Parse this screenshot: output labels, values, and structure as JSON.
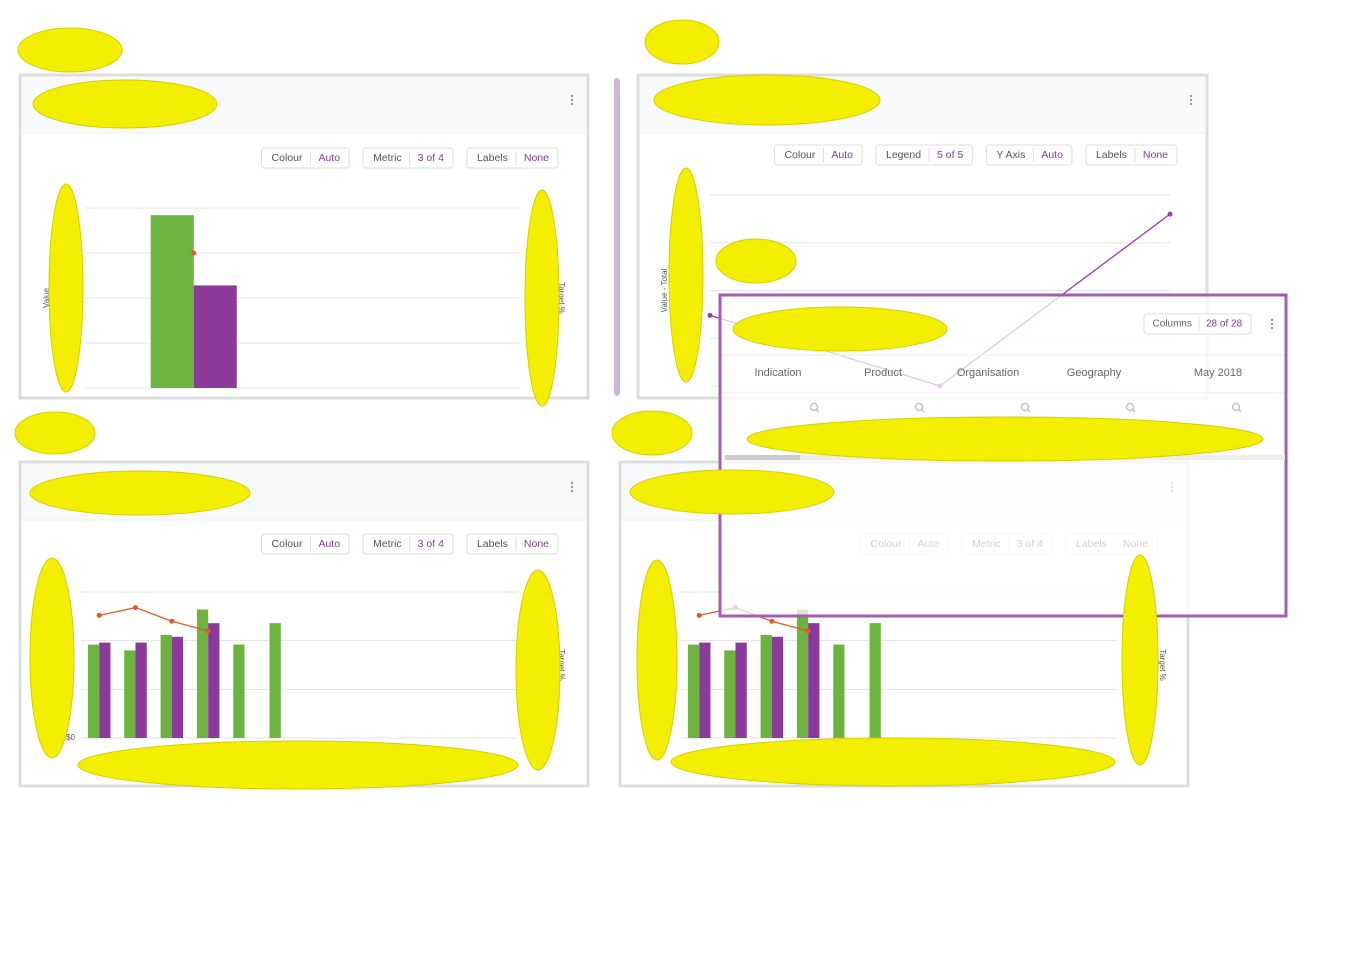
{
  "panels": [
    {
      "controls": [
        {
          "label": "Colour",
          "value": "Auto"
        },
        {
          "label": "Metric",
          "value": "3 of 4"
        },
        {
          "label": "Labels",
          "value": "None"
        }
      ],
      "chart": {
        "type": "bar",
        "ylabel": "Value",
        "y2label": "Target %",
        "categories": [
          null,
          null
        ],
        "ylim": [
          0,
          100
        ],
        "yticks": [
          0,
          25,
          50,
          75,
          100
        ],
        "y2lim": [
          0,
          100
        ],
        "series": [
          {
            "color": "#6db33f",
            "values": [
              96,
              null
            ]
          },
          {
            "color": "#8b3a99",
            "values": [
              57,
              null
            ]
          },
          {
            "color": "#e8572a",
            "axis": "y2",
            "values": [
              75,
              null
            ]
          }
        ]
      }
    },
    {
      "controls": [
        {
          "label": "Colour",
          "value": "Auto"
        },
        {
          "label": "Legend",
          "value": "5 of 5"
        },
        {
          "label": "Y Axis",
          "value": "Auto"
        },
        {
          "label": "Labels",
          "value": "None"
        }
      ],
      "chart": {
        "type": "line",
        "ylabel": "Value - Total",
        "categories": [
          null,
          null,
          null
        ],
        "ylim": [
          0,
          100
        ],
        "yticks": [
          0,
          25,
          50,
          75,
          100
        ],
        "series": [
          {
            "color": "#9b3da8",
            "values": [
              37,
              0,
              90
            ]
          }
        ]
      }
    },
    {
      "controls": [
        {
          "label": "Colour",
          "value": "Auto"
        },
        {
          "label": "Metric",
          "value": "3 of 4"
        },
        {
          "label": "Labels",
          "value": "None"
        }
      ],
      "chart": {
        "type": "bar",
        "y2label": "Target %",
        "categories": [
          null,
          null,
          null,
          null,
          null,
          null,
          null,
          null,
          null,
          null,
          null,
          null
        ],
        "ylim": [
          0,
          75
        ],
        "yticks": [
          {
            "value": 0,
            "label": "$0"
          },
          25,
          50,
          75
        ],
        "y2lim": [
          0,
          75
        ],
        "series": [
          {
            "color": "#6db33f",
            "values": [
              48,
              45,
              53,
              66,
              48,
              59,
              null,
              null,
              null,
              null,
              null,
              null
            ]
          },
          {
            "color": "#8b3a99",
            "values": [
              49,
              49,
              52,
              59,
              null,
              null,
              null,
              null,
              null,
              null,
              null,
              null
            ]
          },
          {
            "color": "#e8572a",
            "axis": "y2",
            "values": [
              63,
              67,
              60,
              55,
              null,
              null,
              null,
              null,
              null,
              null,
              null,
              null
            ]
          }
        ]
      }
    },
    {
      "controls": [
        {
          "label": "Colour",
          "value": "Auto"
        },
        {
          "label": "Metric",
          "value": "3 of 4"
        },
        {
          "label": "Labels",
          "value": "None"
        }
      ],
      "chart": {
        "type": "bar",
        "y2label": "Target %",
        "categories": [
          null,
          null,
          null,
          null,
          null,
          null,
          null,
          null,
          null,
          null,
          null,
          null
        ],
        "ylim": [
          0,
          75
        ],
        "yticks": [
          0,
          25,
          50,
          75
        ],
        "y2lim": [
          0,
          75
        ],
        "series": [
          {
            "color": "#6db33f",
            "values": [
              48,
              45,
              53,
              66,
              48,
              59,
              null,
              null,
              null,
              null,
              null,
              null
            ]
          },
          {
            "color": "#8b3a99",
            "values": [
              49,
              49,
              52,
              59,
              null,
              null,
              null,
              null,
              null,
              null,
              null,
              null
            ]
          },
          {
            "color": "#e8572a",
            "axis": "y2",
            "values": [
              63,
              67,
              60,
              55,
              null,
              null,
              null,
              null,
              null,
              null,
              null,
              null
            ]
          }
        ]
      }
    }
  ],
  "overlay": {
    "button": {
      "label": "Columns",
      "value": "28 of 28"
    },
    "columns": [
      "Indication",
      "Product",
      "Organisation",
      "Geography",
      "May 2018"
    ]
  }
}
